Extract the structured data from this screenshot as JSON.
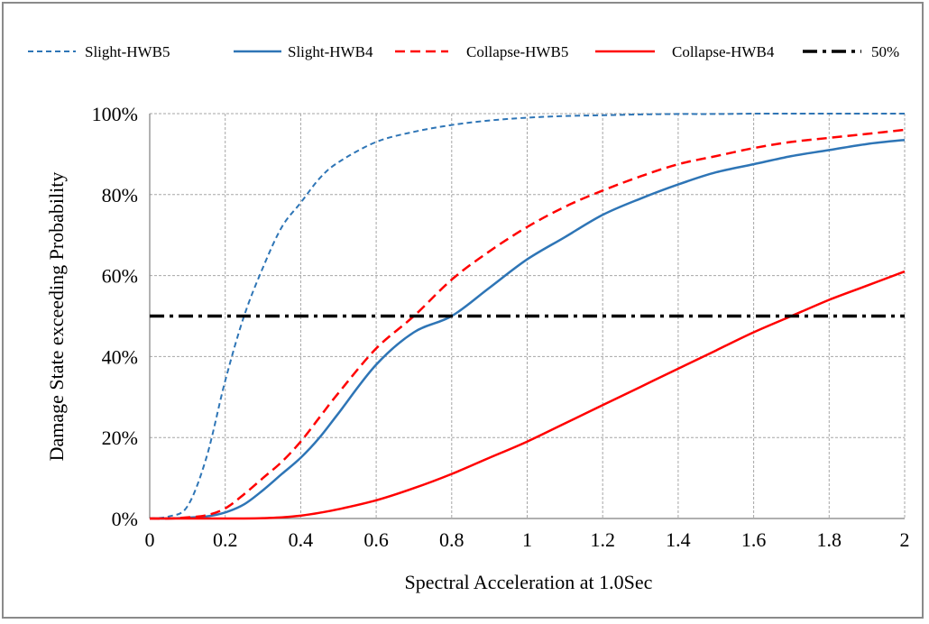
{
  "chart_data": {
    "type": "line",
    "title": "",
    "xlabel": "Spectral Acceleration at 1.0Sec",
    "ylabel": "Damage State exceeding Probability",
    "xlim": [
      0,
      2
    ],
    "ylim": [
      0,
      100
    ],
    "x_ticks": [
      "0",
      "0.2",
      "0.4",
      "0.6",
      "0.8",
      "1",
      "1.2",
      "1.4",
      "1.6",
      "1.8",
      "2"
    ],
    "y_ticks": [
      "0%",
      "20%",
      "40%",
      "60%",
      "80%",
      "100%"
    ],
    "grid": true,
    "legend_position": "top",
    "x": [
      0,
      0.05,
      0.1,
      0.15,
      0.2,
      0.25,
      0.3,
      0.35,
      0.4,
      0.45,
      0.5,
      0.6,
      0.7,
      0.8,
      0.9,
      1.0,
      1.1,
      1.2,
      1.3,
      1.4,
      1.5,
      1.6,
      1.7,
      1.8,
      1.9,
      2.0
    ],
    "series": [
      {
        "name": "Slight-HWB5",
        "color": "#2e75b6",
        "dash": "dashed-short",
        "values": [
          0,
          0.5,
          3,
          15,
          34,
          50,
          62,
          72,
          78,
          84,
          88,
          93,
          95.5,
          97.2,
          98.3,
          99,
          99.4,
          99.6,
          99.8,
          99.9,
          99.9,
          100,
          100,
          100,
          100,
          100
        ]
      },
      {
        "name": "Slight-HWB4",
        "color": "#2e75b6",
        "dash": "solid",
        "values": [
          0,
          0,
          0.2,
          0.5,
          1.5,
          3.5,
          7,
          11,
          15,
          20,
          26,
          38,
          46,
          50,
          57,
          64,
          69.5,
          75,
          79,
          82.5,
          85.5,
          87.5,
          89.5,
          91,
          92.5,
          93.5
        ]
      },
      {
        "name": "Collapse-HWB5",
        "color": "#ff0000",
        "dash": "dashed-long",
        "values": [
          0,
          0,
          0.3,
          0.8,
          2.5,
          6,
          10,
          14,
          19,
          25,
          31,
          42,
          50,
          59,
          66,
          72,
          77,
          81,
          84.5,
          87.5,
          89.5,
          91.5,
          93,
          94,
          95,
          96
        ]
      },
      {
        "name": "Collapse-HWB4",
        "color": "#ff0000",
        "dash": "solid",
        "values": [
          0,
          0,
          0,
          0,
          0,
          0,
          0.1,
          0.3,
          0.7,
          1.4,
          2.3,
          4.5,
          7.5,
          11,
          15,
          19,
          23.5,
          28,
          32.5,
          37,
          41.5,
          46,
          50,
          54,
          57.5,
          61
        ]
      },
      {
        "name": "50%",
        "color": "#000000",
        "dash": "dash-dot",
        "values": [
          50,
          50,
          50,
          50,
          50,
          50,
          50,
          50,
          50,
          50,
          50,
          50,
          50,
          50,
          50,
          50,
          50,
          50,
          50,
          50,
          50,
          50,
          50,
          50,
          50,
          50
        ]
      }
    ]
  },
  "colors": {
    "grid": "#a6a6a6",
    "axis": "#808080",
    "frame": "#8a8a8a"
  }
}
